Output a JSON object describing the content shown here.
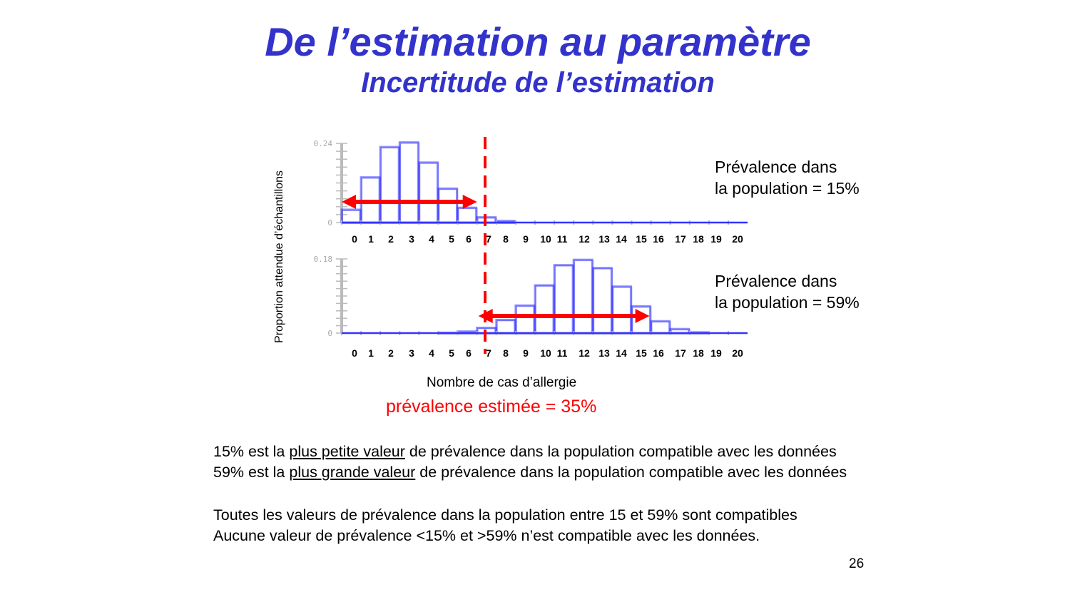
{
  "slide": {
    "title": "De l’estimation au paramètre",
    "subtitle": "Incertitude de l’estimation",
    "page_number": "26"
  },
  "annotations": {
    "top_note_line1": "Prévalence dans",
    "top_note_line2": "la population = 15%",
    "bottom_note_line1": "Prévalence dans",
    "bottom_note_line2": "la population = 59%",
    "y_axis_label": "Proportion attendue d’échantillons",
    "x_axis_label": "Nombre de cas d’allergie",
    "estimate_label": "prévalence estimée = 35%"
  },
  "body": {
    "line1": {
      "pre": "15% est la ",
      "underlined": "plus petite valeur",
      "post": " de prévalence dans la population compatible avec les données"
    },
    "line2": {
      "pre": "59% est la ",
      "underlined": "plus grande valeur",
      "post": " de prévalence dans la population compatible avec les données"
    },
    "line3": "Toutes les valeurs de prévalence dans la population entre 15 et 59% sont compatibles",
    "line4": "Aucune valeur de prévalence <15% et >59% n’est compatible avec les données."
  },
  "colors": {
    "title": "#3333cc",
    "bars": "#3333ff",
    "arrow": "#ff0000",
    "axis": "#bbbbbb"
  },
  "chart_data": [
    {
      "type": "bar",
      "title": "Prévalence dans la population = 15%",
      "xlabel": "Nombre de cas d’allergie",
      "ylabel": "Proportion attendue d’échantillons",
      "categories": [
        "0",
        "1",
        "2",
        "3",
        "4",
        "5",
        "6",
        "7",
        "8",
        "9",
        "10",
        "11",
        "12",
        "13",
        "14",
        "15",
        "16",
        "17",
        "18",
        "19",
        "20"
      ],
      "values": [
        0.039,
        0.137,
        0.229,
        0.243,
        0.182,
        0.103,
        0.045,
        0.016,
        0.005,
        0.001,
        0,
        0,
        0,
        0,
        0,
        0,
        0,
        0,
        0,
        0,
        0
      ],
      "ylim": [
        0,
        0.24
      ],
      "ytick_labels": [
        "0",
        "0.24"
      ],
      "interval_arrow": {
        "from": 0,
        "to": 7
      },
      "threshold_line": {
        "x": 7,
        "style": "dashed",
        "color": "#ff0000"
      }
    },
    {
      "type": "bar",
      "title": "Prévalence dans la population = 59%",
      "xlabel": "Nombre de cas d’allergie",
      "ylabel": "Proportion attendue d’échantillons",
      "categories": [
        "0",
        "1",
        "2",
        "3",
        "4",
        "5",
        "6",
        "7",
        "8",
        "9",
        "10",
        "11",
        "12",
        "13",
        "14",
        "15",
        "16",
        "17",
        "18",
        "19",
        "20"
      ],
      "values": [
        0,
        0,
        0,
        0,
        0,
        0.001,
        0.004,
        0.013,
        0.032,
        0.067,
        0.116,
        0.165,
        0.178,
        0.158,
        0.113,
        0.065,
        0.029,
        0.01,
        0.002,
        0.0004,
        0
      ],
      "ylim": [
        0,
        0.18
      ],
      "ytick_labels": [
        "0",
        "0.18"
      ],
      "interval_arrow": {
        "from": 7,
        "to": 16
      },
      "threshold_line": {
        "x": 7,
        "style": "dashed",
        "color": "#ff0000"
      }
    }
  ]
}
